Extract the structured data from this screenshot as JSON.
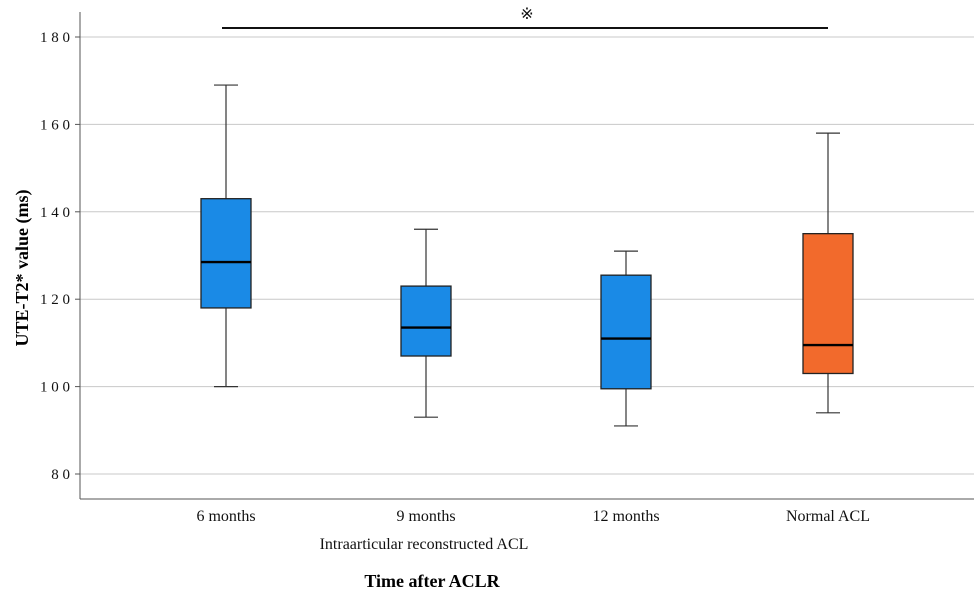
{
  "chart_data": {
    "type": "boxplot",
    "title": "",
    "ylabel": "UTE-T2* value (ms)",
    "xlabel": "Time after ACLR",
    "group_label": "Intraarticular reconstructed ACL",
    "ylim": [
      75,
      190
    ],
    "yticks": [
      80,
      100,
      120,
      140,
      160,
      180
    ],
    "grid": true,
    "significance": {
      "symbol": "※",
      "from": "6 months",
      "to": "Normal ACL"
    },
    "boxes": [
      {
        "category": "6 months",
        "min": 100,
        "q1": 118,
        "median": 128.5,
        "q3": 143,
        "max": 169,
        "color": "#1a8ae6"
      },
      {
        "category": "9 months",
        "min": 93,
        "q1": 107,
        "median": 113.5,
        "q3": 123,
        "max": 136,
        "color": "#1a8ae6"
      },
      {
        "category": "12 months",
        "min": 91,
        "q1": 99.5,
        "median": 111,
        "q3": 125.5,
        "max": 131,
        "color": "#1a8ae6"
      },
      {
        "category": "Normal ACL",
        "min": 94,
        "q1": 103,
        "median": 109.5,
        "q3": 135,
        "max": 158,
        "color": "#f26a2c"
      }
    ]
  }
}
